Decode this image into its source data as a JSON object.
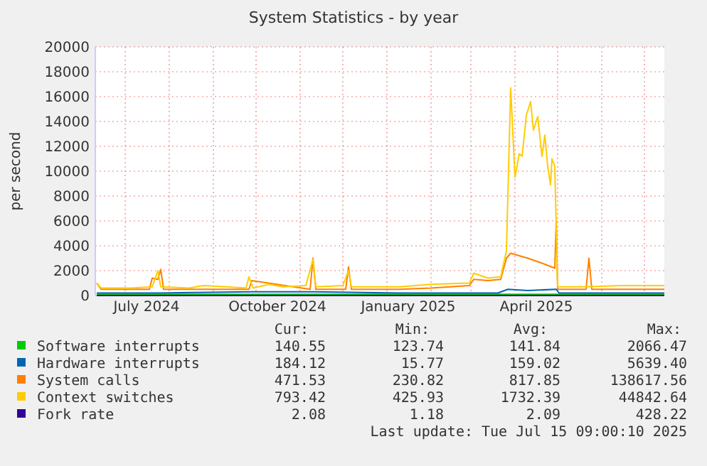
{
  "chart_data": {
    "type": "line",
    "title": "System Statistics - by year",
    "ylabel": "per second",
    "xlim": [
      "2024-06-10",
      "2025-07-15"
    ],
    "xticks": [
      {
        "value": "2024-07-01",
        "label": null
      },
      {
        "value": "2024-07-16",
        "label": "July 2024"
      },
      {
        "value": "2024-08-01",
        "label": null
      },
      {
        "value": "2024-09-01",
        "label": null
      },
      {
        "value": "2024-10-01",
        "label": null
      },
      {
        "value": "2024-10-16",
        "label": "October 2024"
      },
      {
        "value": "2024-11-01",
        "label": null
      },
      {
        "value": "2024-12-01",
        "label": null
      },
      {
        "value": "2025-01-01",
        "label": null
      },
      {
        "value": "2025-01-16",
        "label": "January 2025"
      },
      {
        "value": "2025-02-01",
        "label": null
      },
      {
        "value": "2025-03-01",
        "label": null
      },
      {
        "value": "2025-04-01",
        "label": null
      },
      {
        "value": "2025-04-16",
        "label": "April 2025"
      },
      {
        "value": "2025-05-01",
        "label": null
      },
      {
        "value": "2025-06-01",
        "label": null
      },
      {
        "value": "2025-07-01",
        "label": null
      }
    ],
    "ylim": [
      0,
      20000
    ],
    "yticks": [
      0,
      2000,
      4000,
      6000,
      8000,
      10000,
      12000,
      14000,
      16000,
      18000,
      20000
    ],
    "grid": true,
    "legend": "bottom",
    "series": [
      {
        "name": "Software interrupts",
        "color": "#00cc00",
        "x": [
          "2024-06-11",
          "2024-09-01",
          "2024-12-01",
          "2025-03-01",
          "2025-04-15",
          "2025-07-15"
        ],
        "values": [
          100,
          100,
          100,
          100,
          100,
          100
        ]
      },
      {
        "name": "Hardware interrupts",
        "color": "#0066b3",
        "x": [
          "2024-06-11",
          "2024-07-26",
          "2024-09-28",
          "2024-11-10",
          "2025-01-10",
          "2025-03-20",
          "2025-03-27",
          "2025-04-10",
          "2025-04-30",
          "2025-05-02",
          "2025-06-15",
          "2025-07-15"
        ],
        "values": [
          200,
          200,
          300,
          300,
          200,
          200,
          500,
          400,
          500,
          200,
          200,
          200
        ]
      },
      {
        "name": "System calls",
        "color": "#ff8000",
        "x": [
          "2024-06-11",
          "2024-06-14",
          "2024-07-18",
          "2024-07-20",
          "2024-07-24",
          "2024-07-26",
          "2024-07-28",
          "2024-09-26",
          "2024-09-28",
          "2024-11-08",
          "2024-11-10",
          "2024-11-12",
          "2024-12-03",
          "2024-12-05",
          "2024-12-07",
          "2025-01-10",
          "2025-02-01",
          "2025-02-28",
          "2025-03-03",
          "2025-03-13",
          "2025-03-22",
          "2025-03-26",
          "2025-03-29",
          "2025-04-10",
          "2025-04-20",
          "2025-04-29",
          "2025-04-30",
          "2025-05-01",
          "2025-05-21",
          "2025-05-23",
          "2025-05-25",
          "2025-06-20",
          "2025-07-15"
        ],
        "values": [
          1000,
          500,
          500,
          1400,
          1300,
          2100,
          500,
          500,
          1200,
          500,
          3000,
          500,
          500,
          2300,
          500,
          500,
          600,
          800,
          1300,
          1200,
          1300,
          3000,
          3400,
          3000,
          2600,
          2200,
          6000,
          500,
          500,
          3000,
          500,
          500,
          500
        ]
      },
      {
        "name": "Context switches",
        "color": "#ffcc00",
        "x": [
          "2024-06-11",
          "2024-06-14",
          "2024-07-05",
          "2024-07-20",
          "2024-07-24",
          "2024-07-26",
          "2024-08-15",
          "2024-08-25",
          "2024-09-10",
          "2024-09-24",
          "2024-09-26",
          "2024-09-29",
          "2024-10-10",
          "2024-10-20",
          "2024-11-05",
          "2024-11-10",
          "2024-11-12",
          "2024-12-01",
          "2024-12-05",
          "2024-12-07",
          "2025-01-10",
          "2025-02-01",
          "2025-02-28",
          "2025-03-03",
          "2025-03-13",
          "2025-03-22",
          "2025-03-26",
          "2025-03-29",
          "2025-04-01",
          "2025-04-04",
          "2025-04-06",
          "2025-04-09",
          "2025-04-12",
          "2025-04-14",
          "2025-04-17",
          "2025-04-20",
          "2025-04-22",
          "2025-04-24",
          "2025-04-26",
          "2025-04-27",
          "2025-04-29",
          "2025-05-01",
          "2025-05-20",
          "2025-06-15",
          "2025-07-15"
        ],
        "values": [
          1000,
          600,
          600,
          700,
          2000,
          700,
          600,
          800,
          700,
          600,
          1500,
          600,
          900,
          700,
          800,
          2900,
          700,
          800,
          2000,
          700,
          700,
          900,
          1000,
          1800,
          1400,
          1500,
          3600,
          16700,
          9500,
          11400,
          11200,
          14500,
          15600,
          13300,
          14400,
          11200,
          12900,
          10400,
          8900,
          11000,
          10400,
          700,
          700,
          800,
          800
        ]
      },
      {
        "name": "Fork rate",
        "color": "#330099",
        "x": [
          "2024-06-11",
          "2025-07-15"
        ],
        "values": [
          0,
          0
        ]
      }
    ],
    "annotations": [
      "Cur:",
      "Min:",
      "Avg:",
      "Max:",
      "140.55",
      "123.74",
      "141.84",
      "2066.47",
      "184.12",
      "15.77",
      "159.02",
      "5639.40",
      "471.53",
      "230.82",
      "817.85",
      "138617.56",
      "793.42",
      "425.93",
      "1732.39",
      "44842.64",
      "2.08",
      "1.18",
      "2.09",
      "428.22",
      "Last update: Tue Jul 15 09:00:10 2025"
    ]
  }
}
